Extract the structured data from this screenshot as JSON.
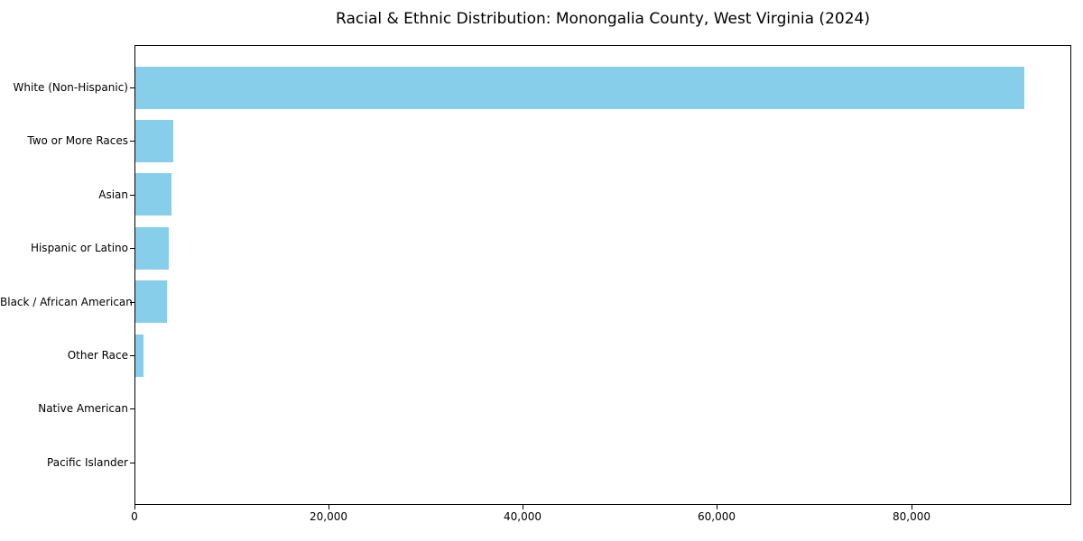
{
  "figure": {
    "background": "#ffffff",
    "border_color": "#000000",
    "text_color": "#000000"
  },
  "chart_data": {
    "type": "bar",
    "orientation": "horizontal",
    "title": "Racial & Ethnic Distribution: Monongalia County, West Virginia (2024)",
    "xlabel": "",
    "ylabel": "",
    "categories": [
      "White (Non-Hispanic)",
      "Two or More Races",
      "Asian",
      "Hispanic or Latino",
      "Black / African American",
      "Other Race",
      "Native American",
      "Pacific Islander"
    ],
    "values": [
      91600,
      3900,
      3700,
      3400,
      3300,
      870,
      0,
      0
    ],
    "bar_color": "#87CEEB",
    "xlim": [
      0,
      96500
    ],
    "x_ticks": [
      0,
      20000,
      40000,
      60000,
      80000
    ],
    "x_tick_labels": [
      "0",
      "20,000",
      "40,000",
      "60,000",
      "80,000"
    ],
    "grid": false,
    "legend": "none"
  }
}
